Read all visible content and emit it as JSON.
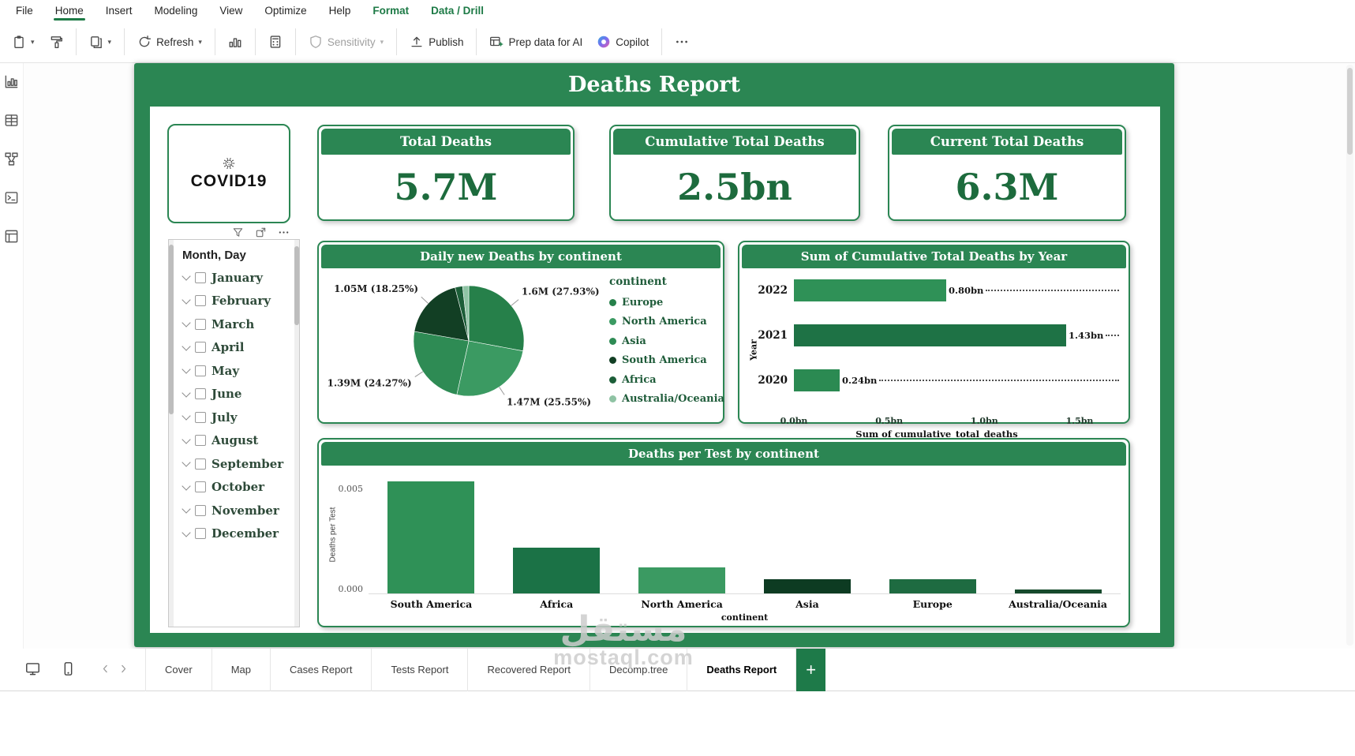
{
  "app": {
    "menubar": {
      "items": [
        {
          "label": "File"
        },
        {
          "label": "Home",
          "active": true
        },
        {
          "label": "Insert"
        },
        {
          "label": "Modeling"
        },
        {
          "label": "View"
        },
        {
          "label": "Optimize"
        },
        {
          "label": "Help"
        },
        {
          "label": "Format",
          "contextual": true
        },
        {
          "label": "Data / Drill",
          "contextual": true
        }
      ]
    },
    "toolbar": {
      "groups": [
        {
          "items": [
            {
              "icon": "paste-icon",
              "chevron": true
            },
            {
              "icon": "format-painter-icon"
            }
          ]
        },
        {
          "items": [
            {
              "icon": "copy-visual-icon",
              "chevron": true
            }
          ]
        },
        {
          "items": [
            {
              "icon": "refresh-icon",
              "label": "Refresh",
              "chevron": true
            }
          ]
        },
        {
          "items": [
            {
              "icon": "new-visual-icon"
            }
          ]
        },
        {
          "items": [
            {
              "icon": "calculator-icon"
            }
          ]
        },
        {
          "items": [
            {
              "icon": "sensitivity-icon",
              "label": "Sensitivity",
              "chevron": true,
              "disabled": true
            }
          ]
        },
        {
          "items": [
            {
              "icon": "publish-icon",
              "label": "Publish"
            }
          ]
        },
        {
          "items": [
            {
              "icon": "prep-data-icon",
              "label": "Prep data for AI"
            },
            {
              "icon": "copilot-icon",
              "label": "Copilot"
            }
          ]
        },
        {
          "items": [
            {
              "icon": "more-icon"
            }
          ]
        }
      ]
    },
    "view_rail": [
      "report-view-icon",
      "data-view-icon",
      "model-view-icon",
      "dax-query-view-icon",
      "report-layout-icon"
    ],
    "pages_bar": {
      "tabs": [
        {
          "label": "Cover"
        },
        {
          "label": "Map"
        },
        {
          "label": "Cases Report"
        },
        {
          "label": "Tests Report"
        },
        {
          "label": "Recovered Report"
        },
        {
          "label": "Decomp.tree"
        },
        {
          "label": "Deaths Report",
          "active": true
        }
      ],
      "add_label": "+"
    }
  },
  "report": {
    "title": "Deaths Report",
    "logo_text": "COVID19",
    "kpis": [
      {
        "label": "Total Deaths",
        "value": "5.7M"
      },
      {
        "label": "Cumulative Total Deaths",
        "value": "2.5bn"
      },
      {
        "label": "Current Total Deaths",
        "value": "6.3M"
      }
    ],
    "slicer": {
      "header": "Month, Day",
      "items": [
        "January",
        "February",
        "March",
        "April",
        "May",
        "June",
        "July",
        "August",
        "September",
        "October",
        "November",
        "December"
      ]
    },
    "visual_hover_icons": [
      "filter-icon",
      "focus-mode-icon",
      "more-icon"
    ]
  },
  "chart_data": [
    {
      "type": "pie",
      "title": "Daily new Deaths by continent",
      "legend_title": "continent",
      "legend_position": "right",
      "slices": [
        {
          "name": "Europe",
          "value": "1.6M",
          "pct": 27.93,
          "label": "1.6M (27.93%)",
          "color": "#26804a"
        },
        {
          "name": "North America",
          "value": "1.47M",
          "pct": 25.55,
          "label": "1.47M (25.55%)",
          "color": "#3b9a62"
        },
        {
          "name": "Asia",
          "value": "1.39M",
          "pct": 24.27,
          "label": "1.39M (24.27%)",
          "color": "#2e8b54"
        },
        {
          "name": "South America",
          "value": "1.05M",
          "pct": 18.25,
          "label": "1.05M (18.25%)",
          "color": "#123f24"
        },
        {
          "name": "Africa",
          "pct": 2.2,
          "color": "#1c5e38"
        },
        {
          "name": "Australia/Oceania",
          "pct": 1.8,
          "color": "#8fc3a4"
        }
      ]
    },
    {
      "type": "bar",
      "orientation": "horizontal",
      "title": "Sum of Cumulative Total Deaths by Year",
      "categories": [
        "2022",
        "2021",
        "2020"
      ],
      "values": [
        0.8,
        1.43,
        0.24
      ],
      "value_labels": [
        "0.80bn",
        "1.43bn",
        "0.24bn"
      ],
      "bar_colors": [
        "#2f9157",
        "#1e7245",
        "#2b8a52"
      ],
      "xticks": [
        "0.0bn",
        "0.5bn",
        "1.0bn",
        "1.5bn"
      ],
      "xlim": [
        0,
        1.5
      ],
      "xlabel": "Sum of cumulative_total_deaths",
      "ylabel": "Year"
    },
    {
      "type": "bar",
      "orientation": "vertical",
      "title": "Deaths per Test by continent",
      "categories": [
        "South America",
        "Africa",
        "North America",
        "Asia",
        "Europe",
        "Australia/Oceania"
      ],
      "values": [
        0.0056,
        0.0023,
        0.0013,
        0.0007,
        0.0007,
        0.0002
      ],
      "bar_colors": [
        "#2f9157",
        "#1b7246",
        "#3b9a62",
        "#0d3b22",
        "#1e6b41",
        "#164a2c"
      ],
      "yticks": [
        "0.005",
        "0.000"
      ],
      "ylim": [
        0,
        0.0061
      ],
      "ylabel": "Deaths per Test",
      "xlabel": "continent"
    }
  ],
  "watermark": {
    "line1": "مستقل",
    "line2": "mostaql.com"
  },
  "theme": {
    "green": "#2b8653",
    "dark_green": "#1d6b3d",
    "header_text": "#ffffff"
  }
}
